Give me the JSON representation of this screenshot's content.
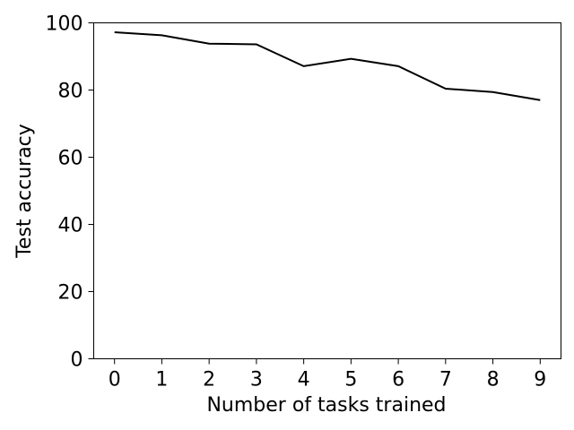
{
  "chart_data": {
    "type": "line",
    "title": "",
    "xlabel": "Number of tasks trained",
    "ylabel": "Test accuracy",
    "x": [
      0,
      1,
      2,
      3,
      4,
      5,
      6,
      7,
      8,
      9
    ],
    "series": [
      {
        "values": [
          97.2,
          96.3,
          93.8,
          93.6,
          87.1,
          89.3,
          87.1,
          80.4,
          79.4,
          77.0
        ],
        "color": "#000000"
      }
    ],
    "xlim": [
      -0.44,
      9.44
    ],
    "ylim": [
      0,
      100
    ],
    "xticks": [
      "0",
      "1",
      "2",
      "3",
      "4",
      "5",
      "6",
      "7",
      "8",
      "9"
    ],
    "yticks": [
      "0",
      "20",
      "40",
      "60",
      "80",
      "100"
    ],
    "grid": false,
    "legend": "none"
  }
}
